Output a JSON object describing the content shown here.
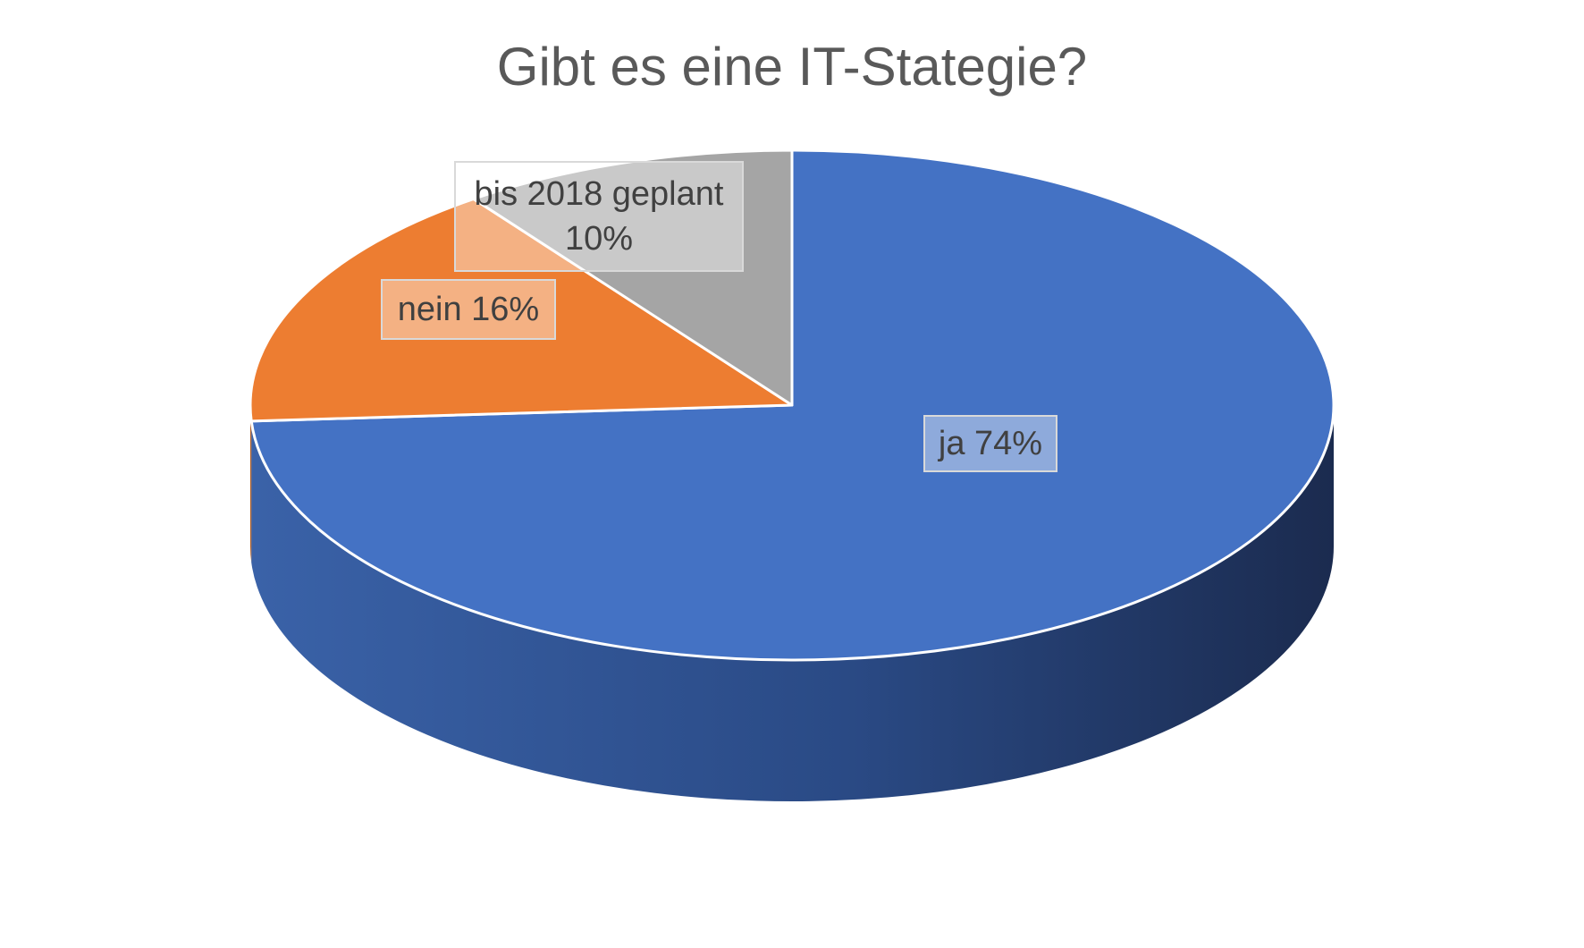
{
  "chart_data": {
    "type": "pie",
    "title": "Gibt es eine IT-Stategie?",
    "three_d": true,
    "slices": [
      {
        "category": "ja",
        "value": 74,
        "label": "ja 74%",
        "color": "#4472C4",
        "side_color": "#2F528F"
      },
      {
        "category": "nein",
        "value": 16,
        "label": "nein 16%",
        "color": "#ED7D31",
        "side_color": "#AE5A21"
      },
      {
        "category": "bis 2018 geplant",
        "value": 10,
        "label": "bis 2018 geplant 10%",
        "color": "#A5A5A5",
        "side_color": "#7B7B7B"
      }
    ]
  }
}
